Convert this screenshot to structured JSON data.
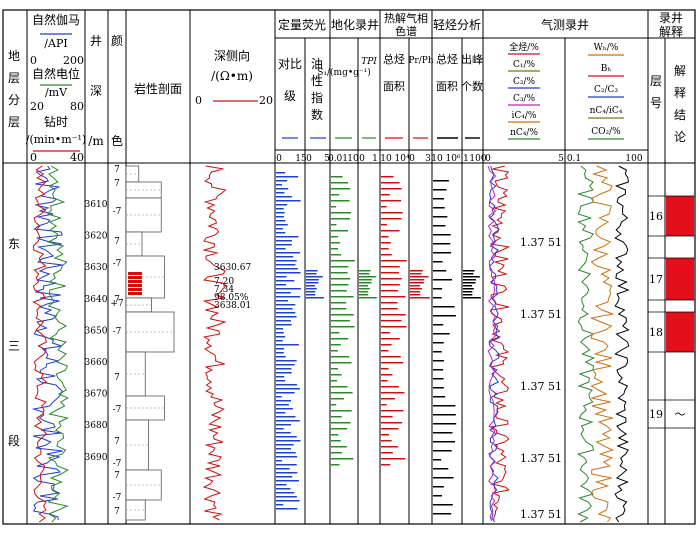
{
  "colors": {
    "blue": "#1f3fd1",
    "red": "#d01010",
    "green": "#2a8a2a",
    "magenta": "#c020c0",
    "orange": "#d07010",
    "olive": "#7a7a10",
    "black": "#000000",
    "interp_red": "#e3101c"
  },
  "headers": {
    "strat_label": "地层分层",
    "sp_api_title": "自然伽马",
    "sp_api_unit": "/API",
    "sp_api_min": "0",
    "sp_api_max": "200",
    "sp_mv_title": "自然电位",
    "sp_mv_unit": "/mV",
    "sp_mv_min": "20",
    "sp_mv_max": "80",
    "drill_title": "钻时",
    "drill_unit": "/(min•m⁻¹)",
    "drill_min": "0",
    "drill_max": "40",
    "depth_title_1": "井",
    "depth_title_2": "深",
    "depth_title_3": "/m",
    "color_title_1": "颜",
    "color_title_2": "色",
    "lith_title": "岩性剖面",
    "res_title": "深侧向",
    "res_unit": "/(Ω•m)",
    "res_min": "0",
    "res_max": "20",
    "fluor_title": "定量荧光",
    "fluor_col1": "对比级",
    "fluor_col2": "油性指数",
    "fluor_ticks": [
      "0",
      "15",
      "0",
      "5"
    ],
    "geochem_title": "地化录井",
    "geochem_col1": "S₁/(mg•g⁻¹)",
    "geochem_col2": "TPI",
    "geochem_ticks": [
      "0.01",
      "10",
      "0",
      "1"
    ],
    "pyro_title": "热解气相色谱",
    "pyro_col1": "总烃面积",
    "pyro_col2": "Pr/Ph",
    "pyro_ticks": [
      "10",
      "10⁴",
      "0",
      "3"
    ],
    "lhc_title": "轻烃分析",
    "lhc_col1": "总烃面积",
    "lhc_col2": "出峰个数",
    "lhc_ticks": [
      "10",
      "10⁶",
      "1",
      "100"
    ],
    "gas_title": "气测录井",
    "gas_left_items": [
      "全烃/%",
      "C₁/%",
      "C₂/%",
      "C₃/%",
      "iC₄/%",
      "nC₄/%"
    ],
    "gas_left_ticks": [
      "0",
      "5"
    ],
    "gas_right_items": [
      "Wₕ/%",
      "Bₕ",
      "C₂/C₃",
      "nC₄/iC₄",
      "CO₂/%"
    ],
    "gas_right_ticks": [
      "0.1",
      "100"
    ],
    "interp_title": "录井解释",
    "layer_label": "层号",
    "conclusion_label": "解释结论"
  },
  "formation": [
    "东",
    "三",
    "段"
  ],
  "depth_ticks": [
    "3610",
    "3620",
    "3630",
    "3640",
    "3650",
    "3660",
    "3670",
    "3680",
    "3690"
  ],
  "color_codes": [
    "7",
    "7",
    "-7",
    "7",
    "-7",
    "7",
    "+7",
    "-7",
    "7",
    "-7",
    "7",
    "-7",
    "7",
    "-7",
    "7"
  ],
  "res_annotations": [
    "3630.67",
    "7.20",
    "7.34",
    "98.05%",
    "3638.01"
  ],
  "gas_annotations": [
    "1.37  51",
    "1.37  51",
    "1.37  51",
    "1.37  51",
    "1.37  51"
  ],
  "layers": [
    {
      "number": "16",
      "conclusion": ""
    },
    {
      "number": "17",
      "conclusion": ""
    },
    {
      "number": "18",
      "conclusion": ""
    },
    {
      "number": "19",
      "conclusion": "～"
    }
  ]
}
